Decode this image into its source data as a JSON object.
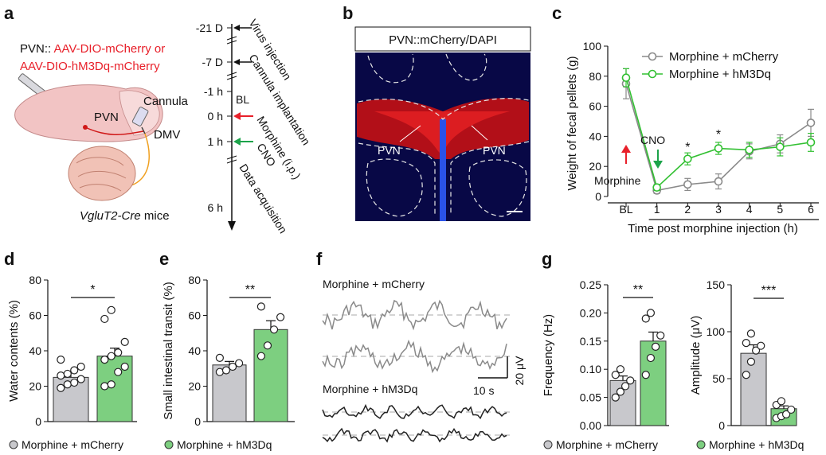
{
  "panels": {
    "a": {
      "letter": "a",
      "construct_prefix": "PVN:: ",
      "construct_1": "AAV-DIO-mCherry or",
      "construct_2": "AAV-DIO-hM3Dq-mCherry",
      "pvn": "PVN",
      "cannula": "Cannula",
      "dmv": "DMV",
      "mice_italic": "VgluT2-Cre",
      "mice_rest": " mice",
      "timeline": [
        {
          "t": "-21 D",
          "event": "Virus  injection"
        },
        {
          "t": "-7 D",
          "event": "Cannula implantation"
        },
        {
          "t": "-1 h",
          "event": ""
        },
        {
          "t": "0 h",
          "event": "Morphine (i.p.)"
        },
        {
          "t": "1 h",
          "event": "CNO"
        },
        {
          "t": "6 h",
          "event": "Data acquisition"
        }
      ],
      "bl": "BL",
      "colors": {
        "morphine_arrow": "#e8202a",
        "cno_arrow": "#1ca34a"
      }
    },
    "b": {
      "letter": "b",
      "title": "PVN::mCherry/DAPI",
      "pvn_left": "PVN",
      "pvn_right": "PVN"
    },
    "c": {
      "letter": "c"
    },
    "d": {
      "letter": "d"
    },
    "e": {
      "letter": "e"
    },
    "f": {
      "letter": "f",
      "trace1_label": "Morphine + mCherry",
      "trace2_label": "Morphine + hM3Dq",
      "scale_time": "10 s",
      "scale_amp": "20 μV"
    },
    "g": {
      "letter": "g"
    }
  },
  "legends": {
    "left_gray": "Morphine + mCherry",
    "left_green": "Morphine + hM3Dq",
    "right_gray": "Morphine + mCherry",
    "right_green": "Morphine + hM3Dq"
  },
  "colors": {
    "gray": "#c8c8cc",
    "green": "#7dcf80",
    "gray_line": "#8a8a8a",
    "green_line": "#32c032",
    "red": "#e8202a"
  },
  "chart_data": [
    {
      "id": "c",
      "type": "line",
      "ylabel": "Weight of fecal pellets (g)",
      "xlabel": "Time post morphine injection (h)",
      "ylim": [
        0,
        100
      ],
      "yticks": [
        0,
        20,
        40,
        60,
        80,
        100
      ],
      "x": [
        "BL",
        "1",
        "2",
        "3",
        "4",
        "5",
        "6"
      ],
      "series": [
        {
          "name": "Morphine + mCherry",
          "values": [
            75,
            4,
            8,
            10,
            30,
            35,
            49
          ],
          "errors": [
            10,
            2,
            4,
            5,
            5,
            6,
            9
          ]
        },
        {
          "name": "Morphine + hM3Dq",
          "values": [
            79,
            6,
            25,
            32,
            31,
            33,
            36
          ],
          "errors": [
            6,
            2,
            4,
            4,
            5,
            6,
            6
          ]
        }
      ],
      "significance": [
        {
          "x": "2",
          "mark": "*"
        },
        {
          "x": "3",
          "mark": "*"
        }
      ],
      "annotations": {
        "cno": "CNO",
        "morphine": "Morphine"
      }
    },
    {
      "id": "d",
      "type": "bar",
      "ylabel": "Water contents (%)",
      "ylim": [
        0,
        80
      ],
      "yticks": [
        0,
        20,
        40,
        60,
        80
      ],
      "categories": [
        "Morphine + mCherry",
        "Morphine + hM3Dq"
      ],
      "values": [
        25,
        37
      ],
      "errors": [
        2.5,
        4.5
      ],
      "points": [
        [
          19,
          21,
          22,
          24,
          26,
          27,
          29,
          31,
          35
        ],
        [
          20,
          21,
          28,
          31,
          35,
          37,
          39,
          45,
          58,
          63
        ]
      ],
      "significance": "*"
    },
    {
      "id": "e",
      "type": "bar",
      "ylabel": "Small intestinal transit (%)",
      "ylim": [
        0,
        80
      ],
      "yticks": [
        0,
        20,
        40,
        60,
        80
      ],
      "categories": [
        "Morphine + mCherry",
        "Morphine + hM3Dq"
      ],
      "values": [
        32,
        52
      ],
      "errors": [
        2,
        5
      ],
      "points": [
        [
          28,
          29,
          31,
          33,
          36
        ],
        [
          37,
          43,
          52,
          59,
          65
        ]
      ],
      "significance": "**"
    },
    {
      "id": "g1",
      "type": "bar",
      "ylabel": "Frequency (Hz)",
      "ylim": [
        0,
        0.25
      ],
      "yticks": [
        "0.00",
        "0.05",
        "0.10",
        "0.15",
        "0.20",
        "0.25"
      ],
      "categories": [
        "Morphine + mCherry",
        "Morphine + hM3Dq"
      ],
      "values": [
        0.08,
        0.15
      ],
      "errors": [
        0.008,
        0.016
      ],
      "points": [
        [
          0.05,
          0.06,
          0.07,
          0.08,
          0.09,
          0.1
        ],
        [
          0.09,
          0.12,
          0.14,
          0.16,
          0.19,
          0.2
        ]
      ],
      "significance": "**"
    },
    {
      "id": "g2",
      "type": "bar",
      "ylabel": "Amplitude (μV)",
      "ylim": [
        0,
        150
      ],
      "yticks": [
        0,
        50,
        100,
        150
      ],
      "categories": [
        "Morphine + mCherry",
        "Morphine + hM3Dq"
      ],
      "values": [
        77,
        18
      ],
      "errors": [
        9,
        3
      ],
      "points": [
        [
          54,
          68,
          80,
          85,
          88,
          98
        ],
        [
          8,
          10,
          12,
          17,
          22,
          26
        ]
      ],
      "significance": "***"
    }
  ]
}
